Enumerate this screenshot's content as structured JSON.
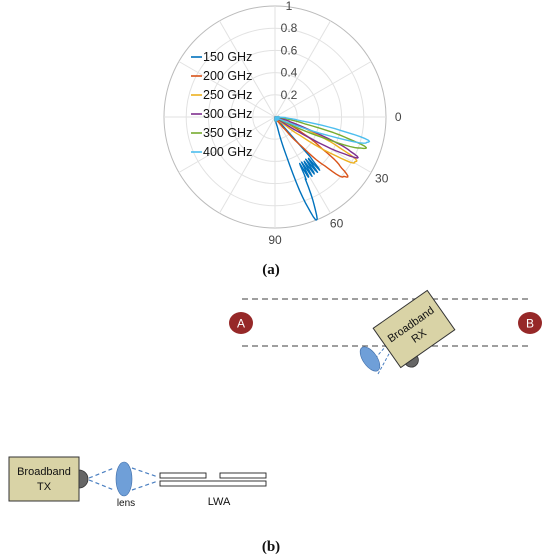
{
  "chart_data": {
    "type": "polar",
    "radial_ticks": [
      "0.2",
      "0.4",
      "0.6",
      "0.8",
      "1"
    ],
    "angle_ticks": [
      {
        "label": "0",
        "deg": 0
      },
      {
        "label": "30",
        "deg": 30
      },
      {
        "label": "60",
        "deg": 60
      },
      {
        "label": "90",
        "deg": 90
      }
    ],
    "rlim": [
      0,
      1
    ],
    "legend_position": "left",
    "series": [
      {
        "name": "150 GHz",
        "color": "#0072BD",
        "lobe": {
          "theta": 68,
          "amp": 0.97,
          "width": 4
        },
        "ripple": true
      },
      {
        "name": "200 GHz",
        "color": "#D95319",
        "lobe": {
          "theta": 40,
          "amp": 0.82,
          "width": 6
        }
      },
      {
        "name": "250 GHz",
        "color": "#EDB120",
        "lobe": {
          "theta": 29,
          "amp": 0.82,
          "width": 5
        }
      },
      {
        "name": "300 GHz",
        "color": "#7E2F8E",
        "lobe": {
          "theta": 26,
          "amp": 0.8,
          "width": 4
        }
      },
      {
        "name": "350 GHz",
        "color": "#77AC30",
        "lobe": {
          "theta": 19,
          "amp": 0.84,
          "width": 4
        }
      },
      {
        "name": "400 GHz",
        "color": "#4DBEEE",
        "lobe": {
          "theta": 15,
          "amp": 0.86,
          "width": 4
        }
      }
    ]
  },
  "captions": {
    "a": "(a)",
    "b": "(b)"
  },
  "diagram": {
    "point_a": "A",
    "point_b": "B",
    "rx_line1": "Broadband",
    "rx_line2": "RX",
    "tx_line1": "Broadband",
    "tx_line2": "TX",
    "lens_label": "lens",
    "lwa_label": "LWA",
    "colors": {
      "box_fill": "#D9D3A6",
      "marker": "#962828",
      "lens": "#6F9FD8",
      "beam": "#4A7FC1"
    }
  }
}
